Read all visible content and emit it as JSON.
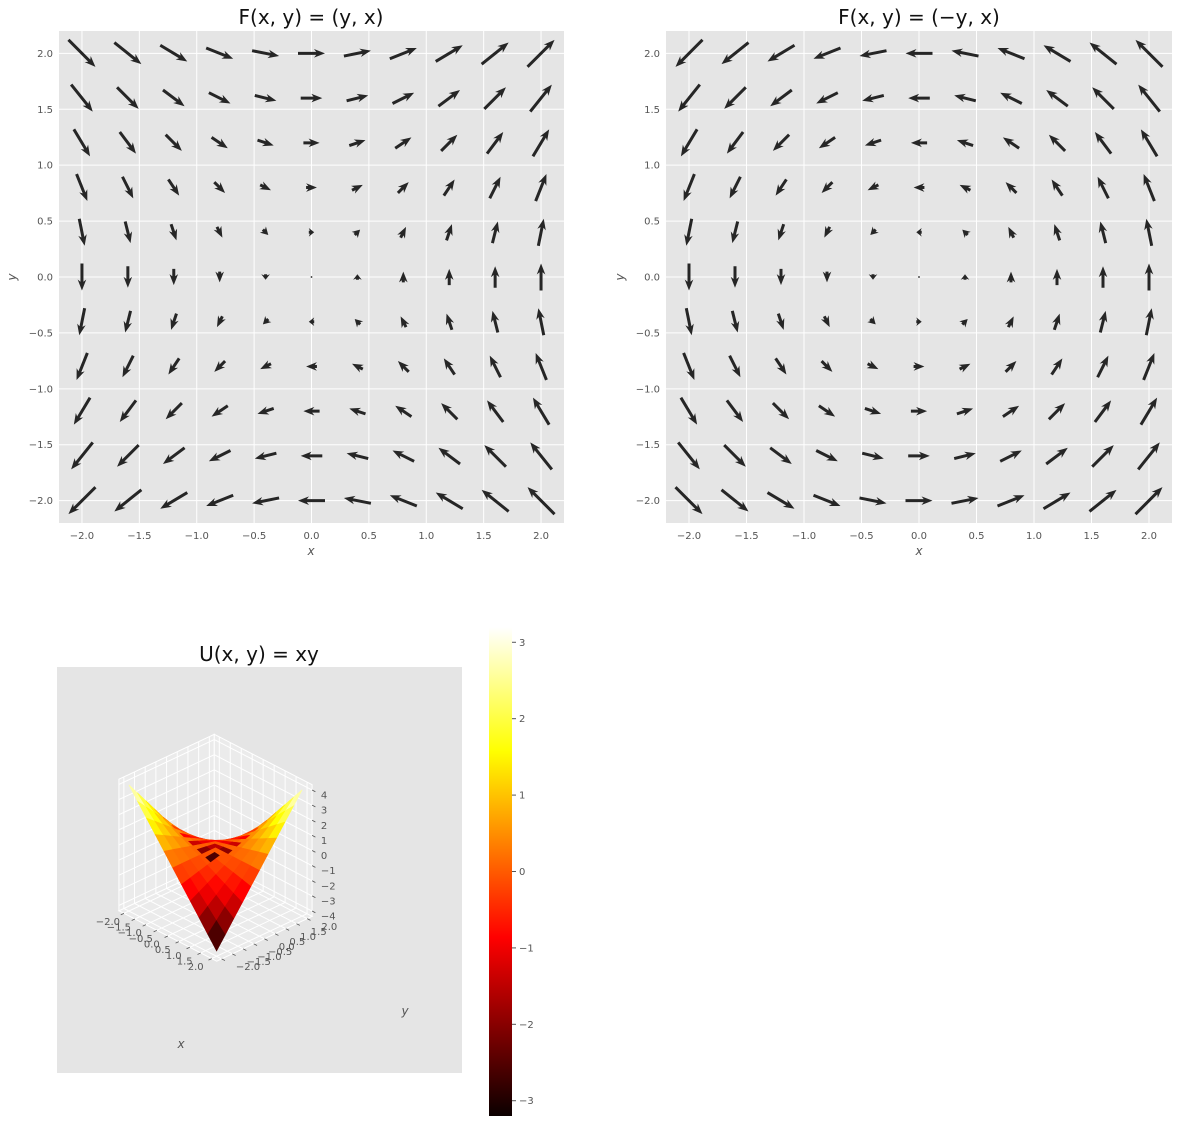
{
  "chart_data": [
    {
      "type": "quiver",
      "title": "F(x, y) = (y, x)",
      "xlabel": "x",
      "ylabel": "y",
      "xlim": [
        -2.2,
        2.2
      ],
      "ylim": [
        -2.2,
        2.2
      ],
      "xticks": [
        "−2.0",
        "−1.5",
        "−1.0",
        "−0.5",
        "0.0",
        "0.5",
        "1.0",
        "1.5",
        "2.0"
      ],
      "yticks": [
        "−2.0",
        "−1.5",
        "−1.0",
        "−0.5",
        "0.0",
        "0.5",
        "1.0",
        "1.5",
        "2.0"
      ],
      "grid": true,
      "field": {
        "u": "y",
        "v": "x"
      },
      "grid_points": {
        "min": -2.0,
        "max": 2.0,
        "count": 11
      },
      "arrow_color": "#262626",
      "background_color": "#e5e5e5"
    },
    {
      "type": "quiver",
      "title": "F(x, y) = (−y, x)",
      "xlabel": "x",
      "ylabel": "y",
      "xlim": [
        -2.2,
        2.2
      ],
      "ylim": [
        -2.2,
        2.2
      ],
      "xticks": [
        "−2.0",
        "−1.5",
        "−1.0",
        "−0.5",
        "0.0",
        "0.5",
        "1.0",
        "1.5",
        "2.0"
      ],
      "yticks": [
        "−2.0",
        "−1.5",
        "−1.0",
        "−0.5",
        "0.0",
        "0.5",
        "1.0",
        "1.5",
        "2.0"
      ],
      "grid": true,
      "field": {
        "u": "-y",
        "v": "x"
      },
      "grid_points": {
        "min": -2.0,
        "max": 2.0,
        "count": 11
      },
      "arrow_color": "#262626",
      "background_color": "#e5e5e5"
    },
    {
      "type": "surface",
      "title": "U(x, y) = xy",
      "xlabel": "x",
      "ylabel": "y",
      "function": "x*y",
      "x_range": [
        -2.0,
        2.0
      ],
      "y_range": [
        -2.0,
        2.0
      ],
      "grid_count": 11,
      "colormap": "hot",
      "xticks": [
        "−2.0",
        "−1.5",
        "−1.0",
        "−0.5",
        "0.0",
        "0.5",
        "1.0",
        "1.5",
        "2.0"
      ],
      "yticks": [
        "−2.0",
        "−1.5",
        "−1.0",
        "−0.5",
        "0.0",
        "0.5",
        "1.0",
        "1.5",
        "2.0"
      ],
      "zticks": [
        "−4",
        "−3",
        "−2",
        "−1",
        "0",
        "1",
        "2",
        "3",
        "4"
      ],
      "colorbar": {
        "range": [
          -3.2,
          3.2
        ],
        "ticks": [
          "−3",
          "−2",
          "−1",
          "0",
          "1",
          "2",
          "3"
        ]
      },
      "background_color": "#e5e5e5"
    }
  ]
}
